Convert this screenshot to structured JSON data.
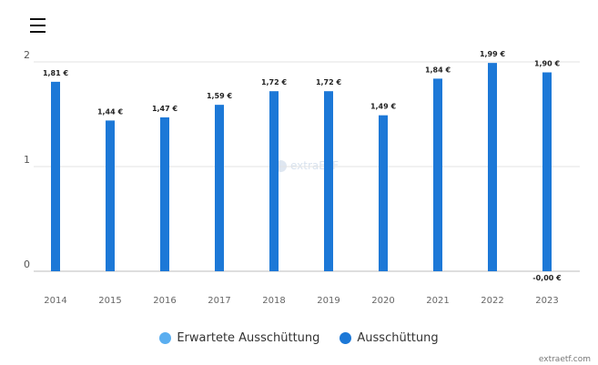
{
  "menu": {
    "icon": "hamburger-menu-icon"
  },
  "chart_data": {
    "type": "bar",
    "title": "",
    "xlabel": "",
    "ylabel": "",
    "categories": [
      "2014",
      "2015",
      "2016",
      "2017",
      "2018",
      "2019",
      "2020",
      "2021",
      "2022",
      "2023"
    ],
    "series": [
      {
        "name": "Ausschüttung",
        "color": "#1c78d7",
        "values": [
          1.81,
          1.44,
          1.47,
          1.59,
          1.72,
          1.72,
          1.49,
          1.84,
          1.99,
          1.9
        ],
        "labels": [
          "1,81 €",
          "1,44 €",
          "1,47 €",
          "1,59 €",
          "1,72 €",
          "1,72 €",
          "1,49 €",
          "1,84 €",
          "1,99 €",
          "1,90 €"
        ]
      }
    ],
    "extra_label": {
      "category": "2023",
      "text": "-0,00 €"
    },
    "yticks": [
      0,
      1,
      2
    ],
    "ylim": [
      0,
      2
    ],
    "grid": true,
    "legend_position": "bottom"
  },
  "legend": [
    {
      "label": "Erwartete Ausschüttung",
      "color": "#5aaef0"
    },
    {
      "label": "Ausschüttung",
      "color": "#1c78d7"
    }
  ],
  "watermark": "extraETF",
  "credit": "extraetf.com"
}
